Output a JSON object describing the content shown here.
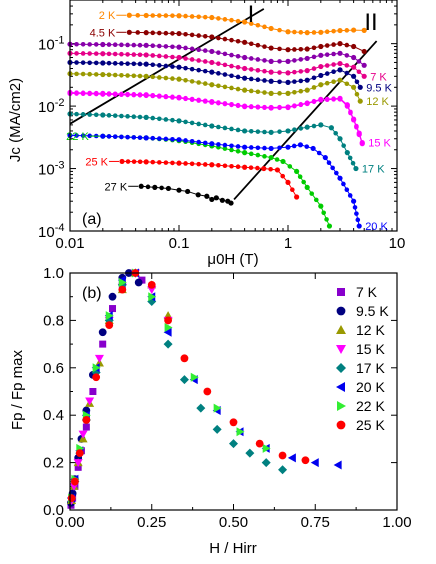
{
  "chart_data": [
    {
      "panel": "(a)",
      "type": "line",
      "xscale": "log",
      "yscale": "log",
      "xlim": [
        0.01,
        10
      ],
      "ylim": [
        0.0001,
        0.5
      ],
      "xlabel": "μ0H (T)",
      "ylabel": "Jc (MA/cm2)",
      "xticks": [
        {
          "v": 0.01,
          "label": "0.01"
        },
        {
          "v": 0.1,
          "label": "0.1"
        },
        {
          "v": 1,
          "label": "1"
        },
        {
          "v": 10,
          "label": "10"
        }
      ],
      "yticks": [
        {
          "v": 0.0001,
          "label": "10-4"
        },
        {
          "v": 0.001,
          "label": "10-3"
        },
        {
          "v": 0.01,
          "label": "10-2"
        },
        {
          "v": 0.1,
          "label": "10-1"
        }
      ],
      "lines": [
        {
          "label": "I",
          "x": [
            0.01,
            0.6
          ],
          "y": [
            0.0052,
            0.36
          ]
        },
        {
          "label": "II",
          "x": [
            0.32,
            6.5
          ],
          "y": [
            0.00032,
            0.11
          ]
        }
      ],
      "series": [
        {
          "name": "2 K",
          "color": "#ff8800",
          "x": [
            0.035,
            0.05,
            0.1,
            0.2,
            0.4,
            0.7,
            1.0,
            1.5,
            2.0,
            3.0,
            4.0,
            5.0
          ],
          "y": [
            0.285,
            0.283,
            0.28,
            0.262,
            0.222,
            0.175,
            0.155,
            0.15,
            0.152,
            0.162,
            0.165,
            0.163
          ]
        },
        {
          "name": "4.5 K",
          "color": "#8b0000",
          "x": [
            0.035,
            0.05,
            0.1,
            0.2,
            0.4,
            0.7,
            1.0,
            1.5,
            2.0,
            3.0,
            4.0,
            5.0
          ],
          "y": [
            0.152,
            0.15,
            0.145,
            0.128,
            0.105,
            0.085,
            0.08,
            0.082,
            0.09,
            0.1,
            0.09,
            0.075
          ]
        },
        {
          "name": "",
          "color": "#8800aa",
          "x": [
            0.01,
            0.02,
            0.05,
            0.1,
            0.2,
            0.4,
            0.7,
            1.0,
            1.5,
            2.0,
            3.0,
            4.0,
            5.0
          ],
          "y": [
            0.098,
            0.097,
            0.094,
            0.088,
            0.075,
            0.06,
            0.052,
            0.052,
            0.058,
            0.065,
            0.07,
            0.06,
            0.045
          ]
        },
        {
          "name": "7 K",
          "color": "#e60089",
          "x": [
            0.01,
            0.02,
            0.05,
            0.1,
            0.2,
            0.4,
            0.7,
            1.0,
            1.5,
            2.0,
            3.0,
            4.0,
            5.0
          ],
          "y": [
            0.07,
            0.069,
            0.066,
            0.06,
            0.05,
            0.04,
            0.035,
            0.034,
            0.037,
            0.043,
            0.048,
            0.042,
            0.03
          ]
        },
        {
          "name": "9.5 K",
          "color": "#000080",
          "x": [
            0.01,
            0.02,
            0.05,
            0.1,
            0.2,
            0.4,
            0.7,
            1.0,
            1.5,
            2.0,
            3.0,
            4.0,
            4.6
          ],
          "y": [
            0.05,
            0.049,
            0.047,
            0.042,
            0.035,
            0.028,
            0.025,
            0.024,
            0.026,
            0.031,
            0.038,
            0.03,
            0.02
          ]
        },
        {
          "name": "12 K",
          "color": "#999900",
          "x": [
            0.01,
            0.02,
            0.05,
            0.1,
            0.2,
            0.4,
            0.7,
            1.0,
            1.5,
            2.0,
            3.0,
            4.0,
            4.6
          ],
          "y": [
            0.033,
            0.032,
            0.03,
            0.027,
            0.022,
            0.018,
            0.016,
            0.016,
            0.018,
            0.022,
            0.026,
            0.02,
            0.012
          ]
        },
        {
          "name": "",
          "color": "#ff00ff",
          "x": [
            0.01,
            0.02,
            0.05,
            0.1,
            0.2,
            0.4,
            0.7,
            1.0,
            1.5,
            2.0,
            3.0,
            3.5,
            4.0,
            4.5,
            4.8
          ],
          "y": [
            0.016,
            0.0155,
            0.0148,
            0.0135,
            0.0115,
            0.0098,
            0.0093,
            0.0095,
            0.011,
            0.0125,
            0.013,
            0.01,
            0.006,
            0.0035,
            0.0025
          ]
        },
        {
          "name": "15 K",
          "color": "#ff00ff",
          "x": [
            0.01,
            0.02,
            0.05,
            0.1,
            0.2,
            0.4,
            0.7,
            1.0,
            1.5,
            2.0,
            3.0,
            3.5,
            4.0,
            4.5,
            4.8
          ],
          "y": [
            0.0165,
            0.016,
            0.0152,
            0.0138,
            0.0118,
            0.01,
            0.0095,
            0.0097,
            0.0112,
            0.0128,
            0.0133,
            0.0105,
            0.0062,
            0.0037,
            0.0026
          ]
        },
        {
          "name": "17 K",
          "color": "#008080",
          "x": [
            0.01,
            0.02,
            0.05,
            0.1,
            0.2,
            0.4,
            0.7,
            1.0,
            1.5,
            2.0,
            2.5,
            3.0,
            3.5,
            4.2
          ],
          "y": [
            0.0075,
            0.0072,
            0.0066,
            0.0058,
            0.0048,
            0.004,
            0.0038,
            0.004,
            0.0046,
            0.005,
            0.0045,
            0.003,
            0.0018,
            0.001
          ]
        },
        {
          "name": "22 K",
          "color": "#00cc00",
          "x": [
            0.02,
            0.05,
            0.1,
            0.2,
            0.4,
            0.7,
            0.9,
            1.2,
            1.5,
            2.0,
            2.4
          ],
          "y": [
            0.0033,
            0.0031,
            0.0028,
            0.0023,
            0.0018,
            0.0015,
            0.0013,
            0.0009,
            0.0005,
            0.00025,
            0.00012
          ]
        },
        {
          "name": "20 K",
          "color": "#0000ff",
          "x": [
            0.01,
            0.02,
            0.05,
            0.1,
            0.2,
            0.4,
            0.7,
            1.0,
            1.3,
            1.7,
            2.2,
            3.0,
            4.0,
            4.5
          ],
          "y": [
            0.0034,
            0.0033,
            0.0031,
            0.0029,
            0.0025,
            0.0022,
            0.0021,
            0.0022,
            0.0024,
            0.0021,
            0.0015,
            0.0007,
            0.0003,
            0.00012
          ]
        },
        {
          "name": "25 K",
          "color": "#ff0000",
          "x": [
            0.03,
            0.05,
            0.1,
            0.2,
            0.4,
            0.6,
            0.8,
            1.0,
            1.2
          ],
          "y": [
            0.0013,
            0.00128,
            0.00122,
            0.00115,
            0.00105,
            0.001,
            0.00095,
            0.0006,
            0.00035
          ]
        },
        {
          "name": "27 K",
          "color": "#000000",
          "x": [
            0.045,
            0.06,
            0.08,
            0.1,
            0.12,
            0.15,
            0.18,
            0.2,
            0.22,
            0.25,
            0.28,
            0.3
          ],
          "y": [
            0.00052,
            0.0005,
            0.00048,
            0.00045,
            0.00043,
            0.00038,
            0.00036,
            0.00032,
            0.00034,
            0.00031,
            0.0003,
            0.00028
          ]
        }
      ]
    },
    {
      "panel": "(b)",
      "type": "scatter",
      "xlim": [
        0,
        1
      ],
      "ylim": [
        0,
        1
      ],
      "xlabel": "H / Hirr",
      "ylabel": "Fp / Fp max",
      "xticks": [
        0,
        0.25,
        0.5,
        0.75,
        1
      ],
      "xtick_labels": [
        "0.00",
        "0.25",
        "0.50",
        "0.75",
        "1.00"
      ],
      "yticks": [
        0,
        0.2,
        0.4,
        0.6,
        0.8,
        1
      ],
      "ytick_labels": [
        "0.0",
        "0.2",
        "0.4",
        "0.6",
        "0.8",
        "1.0"
      ],
      "legend_position": "right",
      "series": [
        {
          "name": "7 K",
          "marker": "square",
          "color": "#8800cc",
          "x": [
            0.003,
            0.008,
            0.015,
            0.025,
            0.035,
            0.05,
            0.07,
            0.1,
            0.13,
            0.16,
            0.19,
            0.22
          ],
          "y": [
            0.02,
            0.05,
            0.1,
            0.18,
            0.25,
            0.35,
            0.5,
            0.7,
            0.85,
            0.95,
            1.0,
            0.97
          ]
        },
        {
          "name": "9.5 K",
          "marker": "circle",
          "color": "#000080",
          "x": [
            0.003,
            0.008,
            0.015,
            0.025,
            0.035,
            0.05,
            0.07,
            0.1,
            0.13,
            0.16,
            0.18,
            0.21
          ],
          "y": [
            0.03,
            0.07,
            0.13,
            0.22,
            0.3,
            0.42,
            0.57,
            0.75,
            0.9,
            0.98,
            1.0,
            0.96
          ]
        },
        {
          "name": "12 K",
          "marker": "triangle-up",
          "color": "#999900",
          "x": [
            0.005,
            0.012,
            0.025,
            0.04,
            0.06,
            0.09,
            0.12,
            0.16,
            0.2,
            0.25,
            0.3
          ],
          "y": [
            0.04,
            0.1,
            0.2,
            0.3,
            0.45,
            0.62,
            0.8,
            0.93,
            1.0,
            0.95,
            0.82
          ]
        },
        {
          "name": "15 K",
          "marker": "triangle-down",
          "color": "#ff00ff",
          "x": [
            0.005,
            0.012,
            0.025,
            0.04,
            0.06,
            0.09,
            0.12,
            0.16,
            0.2,
            0.25,
            0.3
          ],
          "y": [
            0.04,
            0.1,
            0.2,
            0.32,
            0.46,
            0.64,
            0.8,
            0.94,
            1.0,
            0.93,
            0.8
          ]
        },
        {
          "name": "17 K",
          "marker": "diamond",
          "color": "#008080",
          "x": [
            0.005,
            0.015,
            0.03,
            0.05,
            0.08,
            0.12,
            0.16,
            0.2,
            0.25,
            0.3,
            0.35,
            0.4,
            0.45,
            0.5,
            0.55,
            0.6,
            0.65
          ],
          "y": [
            0.05,
            0.12,
            0.24,
            0.38,
            0.58,
            0.8,
            0.95,
            1.0,
            0.88,
            0.7,
            0.55,
            0.43,
            0.34,
            0.28,
            0.24,
            0.2,
            0.17
          ]
        },
        {
          "name": "20 K",
          "marker": "triangle-left",
          "color": "#0000ee",
          "x": [
            0.005,
            0.015,
            0.03,
            0.05,
            0.08,
            0.12,
            0.16,
            0.2,
            0.25,
            0.3,
            0.38,
            0.45,
            0.52,
            0.6,
            0.68,
            0.75,
            0.82
          ],
          "y": [
            0.05,
            0.13,
            0.25,
            0.4,
            0.6,
            0.82,
            0.97,
            1.0,
            0.9,
            0.75,
            0.55,
            0.42,
            0.33,
            0.26,
            0.22,
            0.2,
            0.19
          ]
        },
        {
          "name": "22 K",
          "marker": "triangle-right",
          "color": "#33ee33",
          "x": [
            0.005,
            0.015,
            0.03,
            0.05,
            0.08,
            0.12,
            0.16,
            0.2,
            0.25,
            0.3,
            0.38,
            0.45,
            0.52,
            0.6
          ],
          "y": [
            0.05,
            0.13,
            0.26,
            0.4,
            0.6,
            0.82,
            0.96,
            1.0,
            0.9,
            0.77,
            0.56,
            0.43,
            0.33,
            0.26
          ]
        },
        {
          "name": "25 K",
          "marker": "circle",
          "color": "#ff0000",
          "x": [
            0.005,
            0.015,
            0.03,
            0.05,
            0.08,
            0.12,
            0.16,
            0.2,
            0.25,
            0.3,
            0.35,
            0.42,
            0.5,
            0.58,
            0.65,
            0.72
          ],
          "y": [
            0.05,
            0.12,
            0.24,
            0.38,
            0.56,
            0.78,
            0.93,
            1.0,
            0.95,
            0.8,
            0.64,
            0.5,
            0.37,
            0.28,
            0.23,
            0.21
          ]
        }
      ]
    }
  ]
}
